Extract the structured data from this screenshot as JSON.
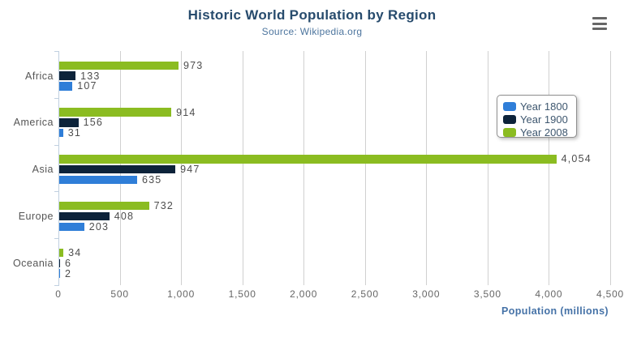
{
  "header": {
    "title": "Historic World Population by Region",
    "subtitle": "Source: Wikipedia.org",
    "menu_icon": "hamburger-menu-icon"
  },
  "chart_data": {
    "type": "bar",
    "orientation": "horizontal",
    "title": "Historic World Population by Region",
    "subtitle": "Source: Wikipedia.org",
    "categories": [
      "Africa",
      "America",
      "Asia",
      "Europe",
      "Oceania"
    ],
    "series": [
      {
        "name": "Year 1800",
        "color": "#2f7ed8",
        "values": [
          107,
          31,
          635,
          203,
          2
        ],
        "labels": [
          "107",
          "31",
          "635",
          "203",
          "2"
        ]
      },
      {
        "name": "Year 1900",
        "color": "#0d233a",
        "values": [
          133,
          156,
          947,
          408,
          6
        ],
        "labels": [
          "133",
          "156",
          "947",
          "408",
          "6"
        ]
      },
      {
        "name": "Year 2008",
        "color": "#8bbc21",
        "values": [
          973,
          914,
          4054,
          732,
          34
        ],
        "labels": [
          "973",
          "914",
          "4,054",
          "732",
          "34"
        ]
      }
    ],
    "series_display_order_top_to_bottom": [
      "Year 2008",
      "Year 1900",
      "Year 1800"
    ],
    "xlabel": "Population (millions)",
    "xlim": [
      0,
      4500
    ],
    "x_tick_step": 500,
    "x_ticks": [
      "0",
      "500",
      "1,000",
      "1,500",
      "2,000",
      "2,500",
      "3,000",
      "3,500",
      "4,000",
      "4,500"
    ],
    "grid": true,
    "legend_position": "right",
    "legend_items": [
      "Year 1800",
      "Year 1900",
      "Year 2008"
    ]
  },
  "colors": {
    "title": "#274b6d",
    "subtitle": "#4d759e",
    "axis_title": "#4572a7",
    "axis_labels": "#666666",
    "category_labels": "#555555",
    "data_labels": "#4d4d4d",
    "grid_line": "#d0d0d0",
    "axis_line": "#c0d0e0",
    "legend_border": "#909090",
    "menu_icon": "#666666"
  }
}
